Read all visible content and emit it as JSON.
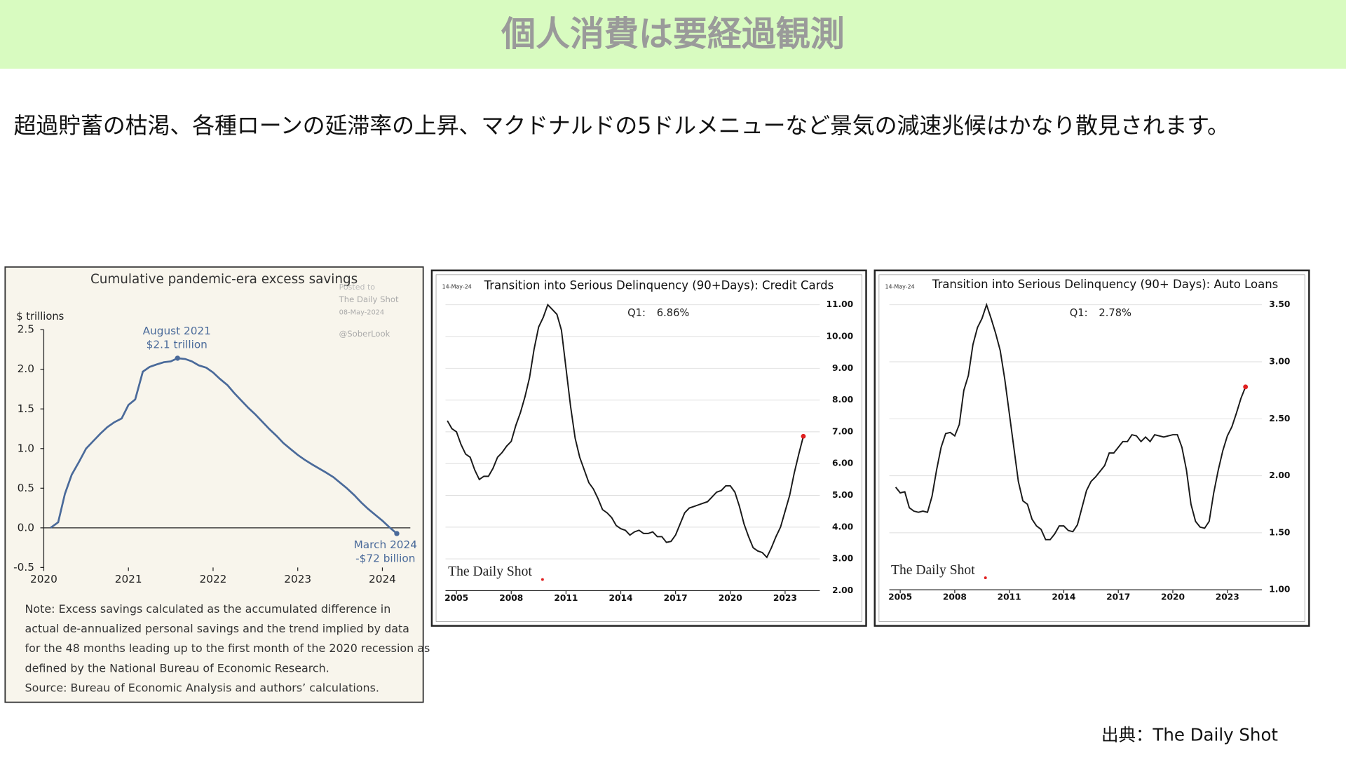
{
  "header": {
    "title": "個人消費は要経過観測"
  },
  "text": "超過貯蓄の枯渇、各種ローンの延滞率の上昇、マクドナルドの5ドルメニューなど景気の減速兆候はかなり散見されます。",
  "source": "出典：The Daily Shot",
  "chart_data": [
    {
      "type": "line",
      "title": "Cumulative pandemic-era excess savings",
      "ylabel": "$ trillions",
      "watermark": [
        "Posted to",
        "The Daily Shot",
        "08-May-2024",
        "@SoberLook"
      ],
      "annotations": [
        "August 2021",
        "$2.1 trillion",
        "March 2024",
        "-$72 billion"
      ],
      "notes": [
        "Note: Excess savings calculated as the accumulated difference in",
        "actual de-annualized personal savings and the trend implied by data",
        "for the 48 months leading up to the first month of the 2020 recession as",
        "defined by the National Bureau of Economic Research.",
        "Source: Bureau of Economic Analysis and authors’ calculations."
      ],
      "color": "#4a6a9a",
      "grid": false,
      "y_axis_side": "left",
      "x": [
        2020.08,
        2020.17,
        2020.25,
        2020.33,
        2020.42,
        2020.5,
        2020.58,
        2020.67,
        2020.75,
        2020.83,
        2020.92,
        2021,
        2021.08,
        2021.17,
        2021.25,
        2021.33,
        2021.42,
        2021.5,
        2021.58,
        2021.67,
        2021.75,
        2021.83,
        2021.92,
        2022,
        2022.08,
        2022.17,
        2022.25,
        2022.33,
        2022.42,
        2022.5,
        2022.58,
        2022.67,
        2022.75,
        2022.83,
        2022.92,
        2023,
        2023.08,
        2023.17,
        2023.25,
        2023.33,
        2023.42,
        2023.5,
        2023.58,
        2023.67,
        2023.75,
        2023.83,
        2023.92,
        2024,
        2024.08,
        2024.17
      ],
      "values": [
        0,
        0.07,
        0.43,
        0.67,
        0.84,
        1.0,
        1.09,
        1.19,
        1.27,
        1.33,
        1.38,
        1.55,
        1.62,
        1.97,
        2.03,
        2.06,
        2.09,
        2.1,
        2.14,
        2.13,
        2.1,
        2.05,
        2.02,
        1.96,
        1.88,
        1.8,
        1.7,
        1.61,
        1.51,
        1.43,
        1.34,
        1.24,
        1.16,
        1.07,
        0.99,
        0.92,
        0.86,
        0.8,
        0.75,
        0.7,
        0.64,
        0.57,
        0.5,
        0.41,
        0.32,
        0.24,
        0.16,
        0.09,
        0.01,
        -0.072
      ],
      "xlim": [
        2020,
        2024.33
      ],
      "xticks": [
        2020,
        2021,
        2022,
        2023,
        2024
      ],
      "ylim": [
        -0.5,
        2.5
      ],
      "yticks": [
        2.5,
        {
          "value": 2,
          "label": "2.0"
        },
        1.5,
        {
          "value": 1,
          "label": "1.0"
        },
        0.5,
        {
          "value": 0,
          "label": "0.0"
        },
        -0.5
      ]
    },
    {
      "type": "line",
      "title": "Transition into Serious Delinquency (90+Days): Credit Cards",
      "date": "14-May-24",
      "watermark": [
        "The Daily Shot"
      ],
      "annotations": [
        "Q1:",
        "6.86%"
      ],
      "color": "#1a1a1a",
      "end_marker_color": "#e02020",
      "grid": true,
      "y_axis_side": "right",
      "x": [
        2004.5,
        2004.75,
        2005,
        2005.25,
        2005.5,
        2005.75,
        2006,
        2006.25,
        2006.5,
        2006.75,
        2007,
        2007.25,
        2007.5,
        2007.75,
        2008,
        2008.25,
        2008.5,
        2008.75,
        2009,
        2009.25,
        2009.5,
        2009.75,
        2010,
        2010.25,
        2010.5,
        2010.75,
        2011,
        2011.25,
        2011.5,
        2011.75,
        2012,
        2012.25,
        2012.5,
        2012.75,
        2013,
        2013.25,
        2013.5,
        2013.75,
        2014,
        2014.25,
        2014.5,
        2014.75,
        2015,
        2015.25,
        2015.5,
        2015.75,
        2016,
        2016.25,
        2016.5,
        2016.75,
        2017,
        2017.25,
        2017.5,
        2017.75,
        2018,
        2018.25,
        2018.5,
        2018.75,
        2019,
        2019.25,
        2019.5,
        2019.75,
        2020,
        2020.25,
        2020.5,
        2020.75,
        2021,
        2021.25,
        2021.5,
        2021.75,
        2022,
        2022.25,
        2022.5,
        2022.75,
        2023,
        2023.25,
        2023.5,
        2023.75,
        2024
      ],
      "values": [
        7.35,
        7.1,
        7.0,
        6.6,
        6.3,
        6.2,
        5.8,
        5.5,
        5.6,
        5.6,
        5.85,
        6.2,
        6.35,
        6.55,
        6.7,
        7.2,
        7.6,
        8.1,
        8.7,
        9.6,
        10.3,
        10.6,
        11.0,
        10.85,
        10.7,
        10.2,
        9.0,
        7.8,
        6.8,
        6.2,
        5.8,
        5.4,
        5.2,
        4.9,
        4.55,
        4.45,
        4.3,
        4.05,
        3.95,
        3.9,
        3.75,
        3.85,
        3.9,
        3.8,
        3.8,
        3.85,
        3.7,
        3.7,
        3.52,
        3.55,
        3.75,
        4.1,
        4.45,
        4.6,
        4.65,
        4.7,
        4.75,
        4.8,
        4.95,
        5.1,
        5.15,
        5.3,
        5.3,
        5.1,
        4.65,
        4.1,
        3.7,
        3.35,
        3.25,
        3.2,
        3.05,
        3.35,
        3.7,
        4.0,
        4.5,
        5.0,
        5.7,
        6.3,
        6.86
      ],
      "xlim": [
        2004.4,
        2024.9
      ],
      "xticks": [
        2005,
        2008,
        2011,
        2014,
        2017,
        2020,
        2023
      ],
      "ylim": [
        2,
        11
      ],
      "yticks": [
        {
          "value": 11,
          "label": "11.00"
        },
        {
          "value": 10,
          "label": "10.00"
        },
        {
          "value": 9,
          "label": "9.00"
        },
        {
          "value": 8,
          "label": "8.00"
        },
        {
          "value": 7,
          "label": "7.00"
        },
        {
          "value": 6,
          "label": "6.00"
        },
        {
          "value": 5,
          "label": "5.00"
        },
        {
          "value": 4,
          "label": "4.00"
        },
        {
          "value": 3,
          "label": "3.00"
        },
        {
          "value": 2,
          "label": "2.00"
        }
      ]
    },
    {
      "type": "line",
      "title": "Transition into Serious Delinquency (90+ Days): Auto Loans",
      "date": "14-May-24",
      "watermark": [
        "The Daily Shot"
      ],
      "annotations": [
        "Q1:",
        "2.78%"
      ],
      "color": "#1a1a1a",
      "end_marker_color": "#e02020",
      "grid": true,
      "y_axis_side": "right",
      "x": [
        2004.75,
        2005,
        2005.25,
        2005.5,
        2005.75,
        2006,
        2006.25,
        2006.5,
        2006.75,
        2007,
        2007.25,
        2007.5,
        2007.75,
        2008,
        2008.25,
        2008.5,
        2008.75,
        2009,
        2009.25,
        2009.5,
        2009.75,
        2010,
        2010.25,
        2010.5,
        2010.75,
        2011,
        2011.25,
        2011.5,
        2011.75,
        2012,
        2012.25,
        2012.5,
        2012.75,
        2013,
        2013.25,
        2013.5,
        2013.75,
        2014,
        2014.25,
        2014.5,
        2014.75,
        2015,
        2015.25,
        2015.5,
        2015.75,
        2016,
        2016.25,
        2016.5,
        2016.75,
        2017,
        2017.25,
        2017.5,
        2017.75,
        2018,
        2018.25,
        2018.5,
        2018.75,
        2019,
        2019.25,
        2019.5,
        2019.75,
        2020,
        2020.25,
        2020.5,
        2020.75,
        2021,
        2021.25,
        2021.5,
        2021.75,
        2022,
        2022.25,
        2022.5,
        2022.75,
        2023,
        2023.25,
        2023.5,
        2023.75,
        2024
      ],
      "values": [
        1.9,
        1.85,
        1.86,
        1.72,
        1.69,
        1.68,
        1.69,
        1.68,
        1.82,
        2.05,
        2.25,
        2.37,
        2.38,
        2.35,
        2.45,
        2.75,
        2.88,
        3.15,
        3.3,
        3.38,
        3.5,
        3.38,
        3.25,
        3.1,
        2.85,
        2.55,
        2.25,
        1.95,
        1.78,
        1.75,
        1.62,
        1.56,
        1.53,
        1.44,
        1.44,
        1.49,
        1.56,
        1.56,
        1.52,
        1.51,
        1.57,
        1.72,
        1.87,
        1.95,
        1.99,
        2.04,
        2.09,
        2.2,
        2.2,
        2.25,
        2.3,
        2.3,
        2.36,
        2.35,
        2.3,
        2.34,
        2.3,
        2.36,
        2.35,
        2.34,
        2.35,
        2.36,
        2.36,
        2.25,
        2.05,
        1.75,
        1.6,
        1.55,
        1.54,
        1.6,
        1.85,
        2.05,
        2.22,
        2.35,
        2.43,
        2.55,
        2.68,
        2.78
      ],
      "xlim": [
        2004.4,
        2024.9
      ],
      "xticks": [
        2005,
        2008,
        2011,
        2014,
        2017,
        2020,
        2023
      ],
      "ylim": [
        1,
        3.5
      ],
      "yticks": [
        {
          "value": 3.5,
          "label": "3.50"
        },
        {
          "value": 3,
          "label": "3.00"
        },
        {
          "value": 2.5,
          "label": "2.50"
        },
        {
          "value": 2,
          "label": "2.00"
        },
        {
          "value": 1.5,
          "label": "1.50"
        },
        {
          "value": 1,
          "label": "1.00"
        }
      ]
    }
  ]
}
